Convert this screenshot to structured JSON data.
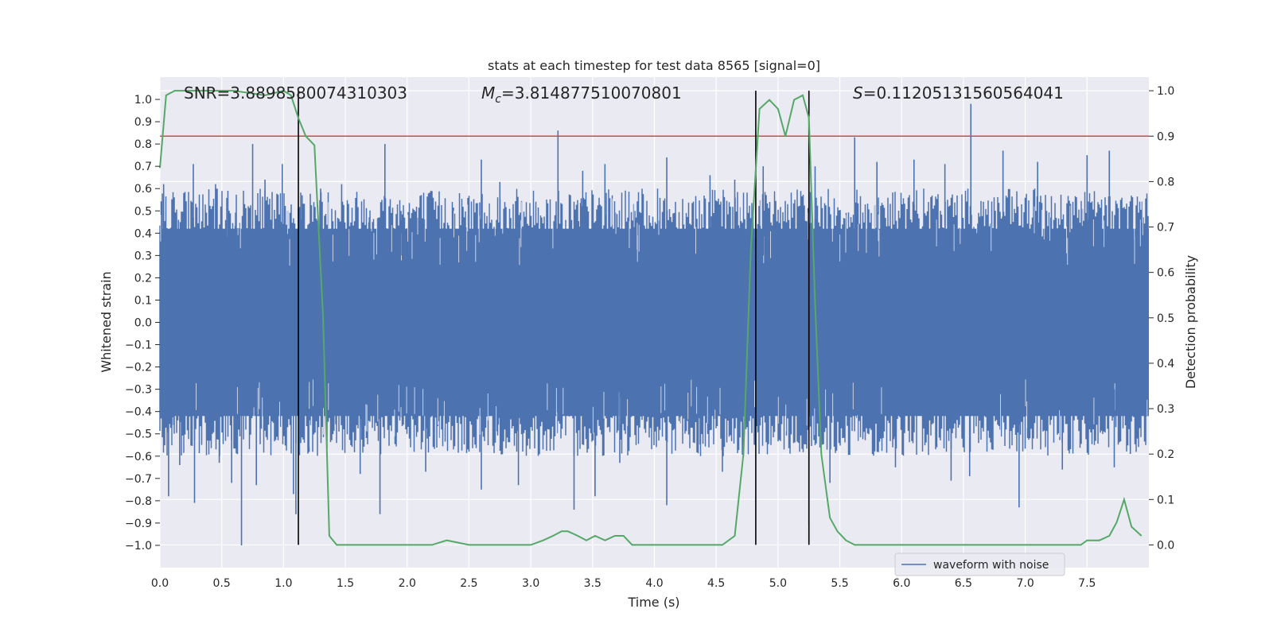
{
  "chart_data": {
    "type": "line",
    "title": "stats at each timestep for test data 8565 [signal=0]",
    "xlabel": "Time (s)",
    "ylabel_left": "Whitened strain",
    "ylabel_right": "Detection probability",
    "xlim": [
      0.0,
      8.0
    ],
    "ylim_left": [
      -1.1,
      1.1
    ],
    "ylim_right": [
      -0.05,
      1.03
    ],
    "x_ticks": [
      "0.0",
      "0.5",
      "1.0",
      "1.5",
      "2.0",
      "2.5",
      "3.0",
      "3.5",
      "4.0",
      "4.5",
      "5.0",
      "5.5",
      "6.0",
      "6.5",
      "7.0",
      "7.5"
    ],
    "y_ticks_left": [
      "1.0",
      "0.9",
      "0.8",
      "0.7",
      "0.6",
      "0.5",
      "0.4",
      "0.3",
      "0.2",
      "0.1",
      "0.0",
      "-0.1",
      "-0.2",
      "-0.3",
      "-0.4",
      "-0.5",
      "-0.6",
      "-0.7",
      "-0.8",
      "-0.9",
      "-1.0"
    ],
    "y_ticks_right": [
      "1.0",
      "0.9",
      "0.8",
      "0.7",
      "0.6",
      "0.5",
      "0.4",
      "0.3",
      "0.2",
      "0.1",
      "0.0"
    ],
    "annotations": {
      "snr": "SNR=3.8898580074310303",
      "mc_symbol": "M",
      "mc_sub": "c",
      "mc_value": "=3.814877510070801",
      "s_symbol": "S",
      "s_value": "=0.11205131560564041"
    },
    "legend": {
      "label": "waveform with noise",
      "location": "lower-right"
    },
    "series": [
      {
        "name": "waveform with noise",
        "axis": "left",
        "color": "#4c72b0",
        "kind": "noise",
        "band_low": -0.42,
        "band_high": 0.42,
        "spikes_up": [
          [
            0.03,
            0.62
          ],
          [
            0.15,
            0.46
          ],
          [
            0.2,
            0.55
          ],
          [
            0.27,
            0.71
          ],
          [
            0.45,
            0.62
          ],
          [
            0.55,
            0.59
          ],
          [
            0.75,
            0.8
          ],
          [
            0.85,
            0.64
          ],
          [
            0.99,
            0.71
          ],
          [
            1.15,
            0.57
          ],
          [
            1.3,
            0.6
          ],
          [
            1.47,
            0.62
          ],
          [
            1.82,
            0.8
          ],
          [
            1.95,
            0.5
          ],
          [
            2.6,
            0.73
          ],
          [
            2.75,
            0.63
          ],
          [
            3.22,
            0.86
          ],
          [
            3.42,
            0.68
          ],
          [
            3.6,
            0.71
          ],
          [
            4.1,
            0.74
          ],
          [
            4.45,
            0.66
          ],
          [
            4.65,
            0.64
          ],
          [
            4.88,
            0.7
          ],
          [
            5.3,
            0.7
          ],
          [
            5.62,
            0.83
          ],
          [
            5.8,
            0.72
          ],
          [
            6.1,
            0.73
          ],
          [
            6.35,
            0.71
          ],
          [
            6.56,
            0.98
          ],
          [
            6.82,
            0.77
          ],
          [
            7.1,
            0.72
          ],
          [
            7.5,
            0.75
          ],
          [
            7.68,
            0.77
          ]
        ],
        "spikes_down": [
          [
            0.07,
            -0.78
          ],
          [
            0.16,
            -0.64
          ],
          [
            0.28,
            -0.81
          ],
          [
            0.48,
            -0.63
          ],
          [
            0.58,
            -0.72
          ],
          [
            0.66,
            -1.0
          ],
          [
            0.78,
            -0.73
          ],
          [
            1.08,
            -0.77
          ],
          [
            1.1,
            -0.86
          ],
          [
            1.62,
            -0.68
          ],
          [
            1.78,
            -0.86
          ],
          [
            2.15,
            -0.67
          ],
          [
            2.6,
            -0.75
          ],
          [
            2.9,
            -0.73
          ],
          [
            3.35,
            -0.84
          ],
          [
            3.52,
            -0.78
          ],
          [
            3.72,
            -0.63
          ],
          [
            4.1,
            -0.82
          ],
          [
            4.55,
            -0.67
          ],
          [
            5.25,
            -0.91
          ],
          [
            5.42,
            -0.72
          ],
          [
            5.95,
            -0.65
          ],
          [
            6.4,
            -0.71
          ],
          [
            6.55,
            -0.69
          ],
          [
            6.95,
            -0.83
          ],
          [
            7.3,
            -0.66
          ],
          [
            7.72,
            -0.65
          ],
          [
            7.85,
            -0.59
          ]
        ],
        "samples": [
          [
            0.0,
            0.05
          ],
          [
            0.25,
            -0.12
          ],
          [
            0.5,
            0.18
          ],
          [
            0.75,
            -0.06
          ],
          [
            1.0,
            0.22
          ],
          [
            1.25,
            -0.19
          ],
          [
            1.5,
            0.09
          ],
          [
            1.75,
            -0.14
          ],
          [
            2.0,
            0.16
          ],
          [
            2.25,
            -0.03
          ],
          [
            2.5,
            0.2
          ],
          [
            2.75,
            -0.18
          ],
          [
            3.0,
            0.07
          ],
          [
            3.25,
            -0.21
          ],
          [
            3.5,
            0.12
          ],
          [
            3.75,
            -0.08
          ],
          [
            4.0,
            0.19
          ],
          [
            4.25,
            -0.15
          ],
          [
            4.5,
            0.04
          ],
          [
            4.75,
            -0.2
          ],
          [
            5.0,
            0.14
          ],
          [
            5.25,
            -0.1
          ],
          [
            5.5,
            0.21
          ],
          [
            5.75,
            -0.17
          ],
          [
            6.0,
            0.08
          ],
          [
            6.25,
            -0.05
          ],
          [
            6.5,
            0.17
          ],
          [
            6.75,
            -0.22
          ],
          [
            7.0,
            0.1
          ],
          [
            7.25,
            -0.13
          ],
          [
            7.5,
            0.15
          ],
          [
            7.75,
            -0.07
          ],
          [
            7.98,
            0.03
          ]
        ]
      },
      {
        "name": "Detection probability",
        "axis": "right",
        "color": "#55a868",
        "x": [
          0.0,
          0.05,
          0.12,
          0.3,
          0.6,
          0.85,
          1.0,
          1.06,
          1.12,
          1.18,
          1.25,
          1.32,
          1.37,
          1.43,
          1.6,
          2.0,
          2.2,
          2.32,
          2.5,
          2.8,
          3.0,
          3.1,
          3.18,
          3.25,
          3.3,
          3.38,
          3.45,
          3.52,
          3.6,
          3.68,
          3.75,
          3.82,
          3.9,
          4.0,
          4.2,
          4.4,
          4.55,
          4.65,
          4.72,
          4.78,
          4.85,
          4.93,
          5.0,
          5.06,
          5.13,
          5.2,
          5.25,
          5.3,
          5.35,
          5.42,
          5.48,
          5.55,
          5.62,
          6.0,
          6.4,
          6.55,
          6.7,
          6.9,
          7.2,
          7.45,
          7.5,
          7.6,
          7.68,
          7.74,
          7.8,
          7.86,
          7.94
        ],
        "y": [
          0.83,
          0.99,
          1.0,
          1.0,
          1.0,
          0.99,
          1.0,
          0.99,
          0.94,
          0.9,
          0.88,
          0.5,
          0.02,
          0.0,
          0.0,
          0.0,
          0.0,
          0.01,
          0.0,
          0.0,
          0.0,
          0.01,
          0.02,
          0.03,
          0.03,
          0.02,
          0.01,
          0.02,
          0.01,
          0.02,
          0.02,
          0.0,
          0.0,
          0.0,
          0.0,
          0.0,
          0.0,
          0.02,
          0.2,
          0.65,
          0.96,
          0.98,
          0.96,
          0.9,
          0.98,
          0.99,
          0.94,
          0.53,
          0.2,
          0.06,
          0.03,
          0.01,
          0.0,
          0.0,
          0.0,
          0.0,
          0.0,
          0.0,
          0.0,
          0.0,
          0.01,
          0.01,
          0.02,
          0.05,
          0.1,
          0.04,
          0.02
        ]
      }
    ],
    "threshold_line": {
      "axis": "right",
      "y": 0.9,
      "color": "#c44e52"
    },
    "vertical_lines": {
      "x": [
        1.12,
        4.82,
        5.25
      ],
      "color": "#000000"
    }
  }
}
